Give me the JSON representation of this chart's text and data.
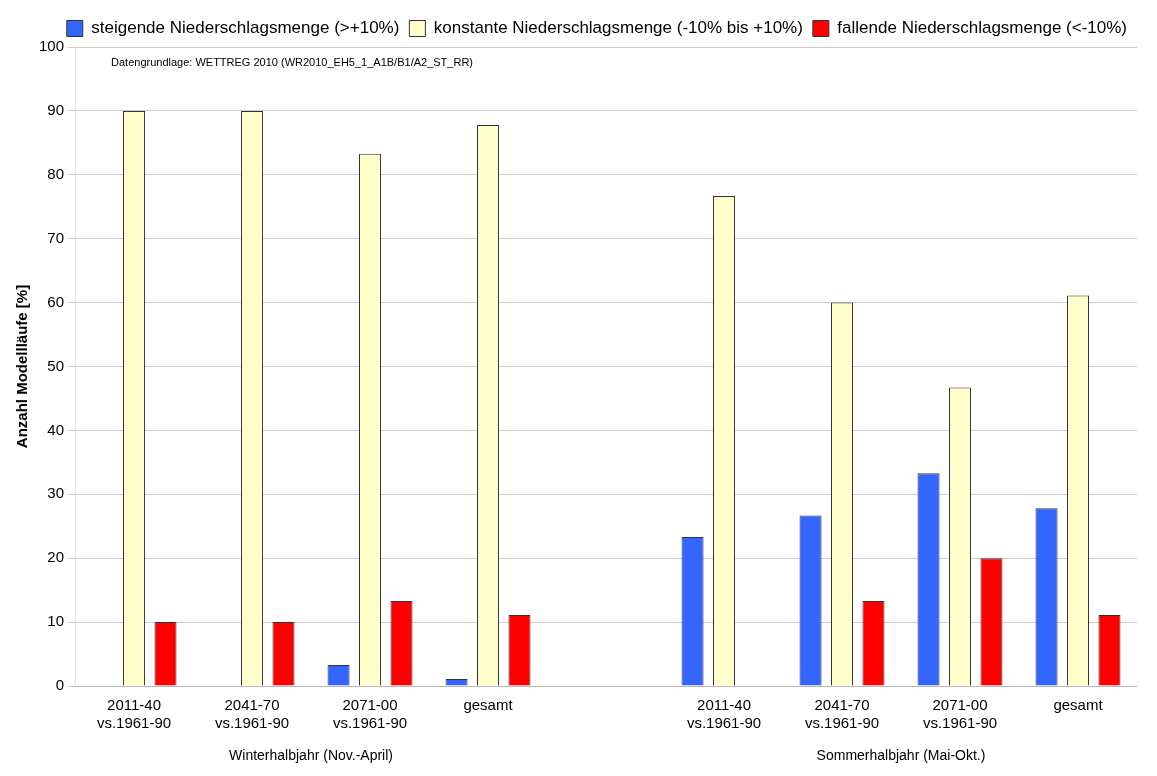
{
  "chart_data": {
    "type": "bar",
    "ylabel": "Anzahl Modellläufe [%]",
    "categories": [
      "2011-40\nvs.1961-90",
      "2041-70\nvs.1961-90",
      "2071-00\nvs.1961-90",
      "gesamt",
      null,
      "2011-40\nvs.1961-90",
      "2041-70\nvs.1961-90",
      "2071-00\nvs.1961-90",
      "gesamt"
    ],
    "series": [
      {
        "name": "steigende Niederschlagsmenge (>+10%)",
        "color": "#3366ff",
        "values": [
          0,
          0,
          3.3,
          1.1,
          null,
          23.3,
          26.7,
          33.3,
          27.8
        ]
      },
      {
        "name": "konstante Niederschlagsmenge (-10% bis +10%)",
        "color": "#ffffcc",
        "values": [
          90,
          90,
          83.3,
          87.8,
          null,
          76.7,
          60,
          46.7,
          61.1
        ]
      },
      {
        "name": "fallende Niederschlagsmenge (<-10%)",
        "color": "#ff0000",
        "values": [
          10,
          10,
          13.3,
          11.1,
          null,
          0,
          13.3,
          20,
          11.1
        ]
      }
    ],
    "ylim": [
      0,
      100
    ],
    "yticks": [
      0,
      10,
      20,
      30,
      40,
      50,
      60,
      70,
      80,
      90,
      100
    ],
    "grid": "y",
    "legend": "top right",
    "annotations": [
      "Datengrundlage: WETTREG 2010 (WR2010_EH5_1_A1B/B1/A2_ST_RR)",
      "Winterhalbjahr (Nov.-April)",
      "Sommerhalbjahr (Mai-Okt.)"
    ]
  }
}
